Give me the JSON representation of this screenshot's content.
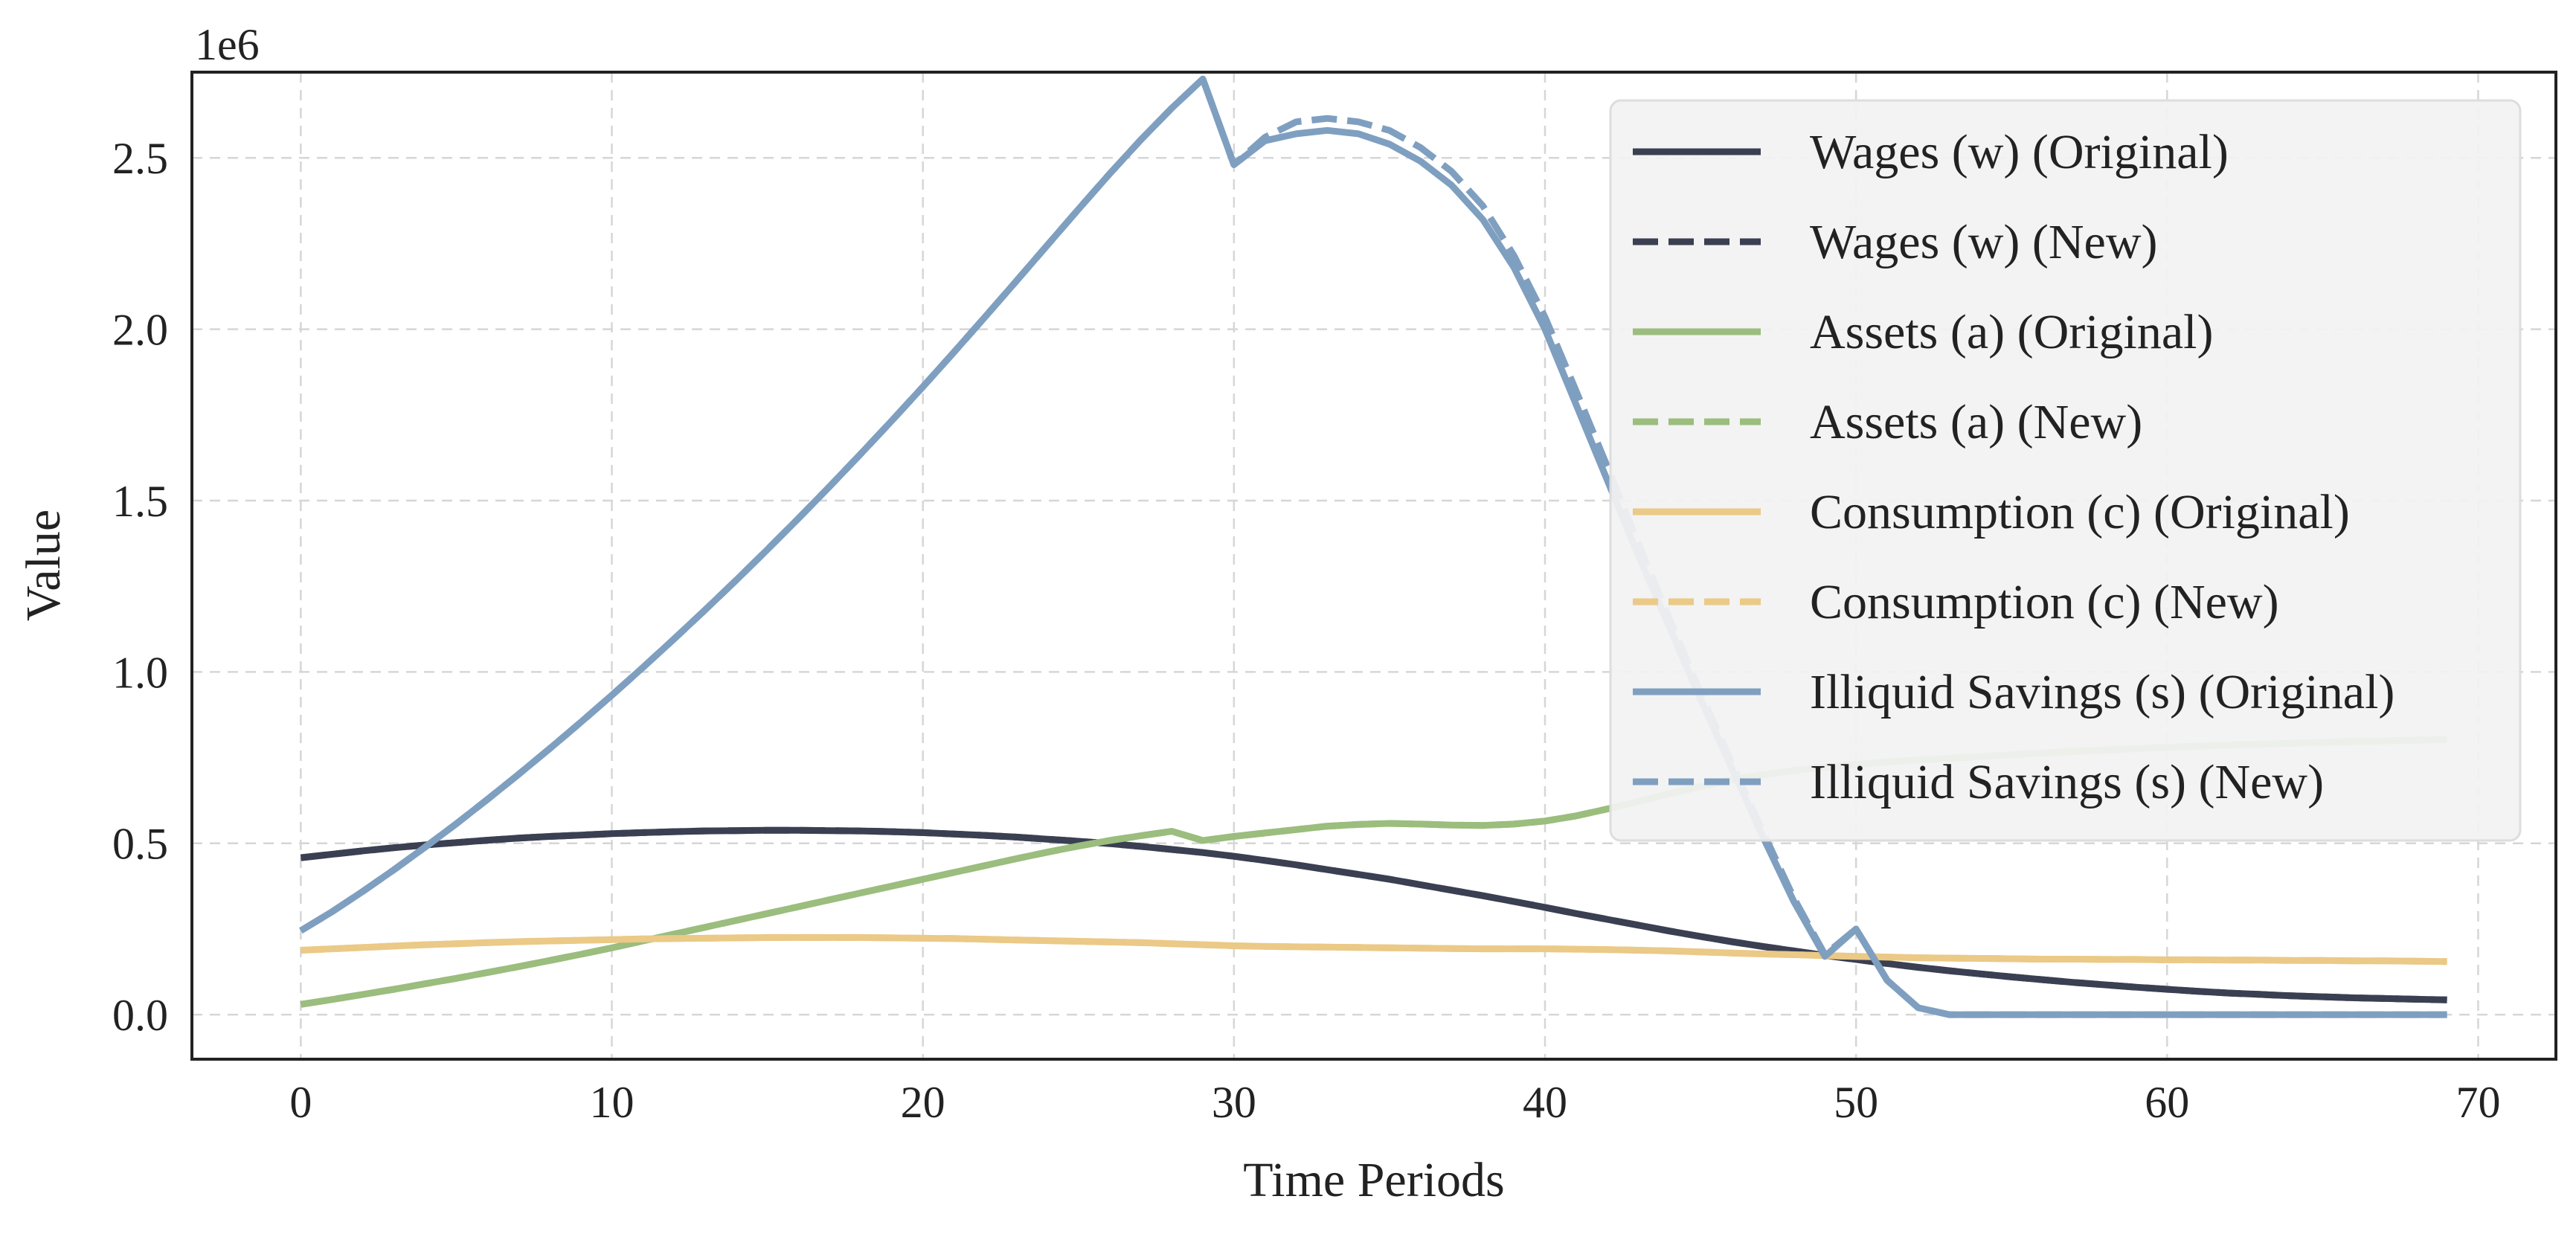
{
  "chart_data": {
    "type": "line",
    "xlabel": "Time Periods",
    "ylabel": "Value",
    "y_offset_label": "1e6",
    "xlim": [
      -3.5,
      72.5
    ],
    "ylim": [
      -130000,
      2750000
    ],
    "x_ticks": [
      0,
      10,
      20,
      30,
      40,
      50,
      60,
      70
    ],
    "y_ticks": [
      0,
      500000,
      1000000,
      1500000,
      2000000,
      2500000
    ],
    "y_tick_labels": [
      "0.0",
      "0.5",
      "1.0",
      "1.5",
      "2.0",
      "2.5"
    ],
    "grid": true,
    "legend_position": "upper right",
    "x": [
      0,
      1,
      2,
      3,
      4,
      5,
      6,
      7,
      8,
      9,
      10,
      11,
      12,
      13,
      14,
      15,
      16,
      17,
      18,
      19,
      20,
      21,
      22,
      23,
      24,
      25,
      26,
      27,
      28,
      29,
      30,
      31,
      32,
      33,
      34,
      35,
      36,
      37,
      38,
      39,
      40,
      41,
      42,
      43,
      44,
      45,
      46,
      47,
      48,
      49,
      50,
      51,
      52,
      53,
      54,
      55,
      56,
      57,
      58,
      59,
      60,
      61,
      62,
      63,
      64,
      65,
      66,
      67,
      68,
      69
    ],
    "series": [
      {
        "name": "Wages (w) (Original)",
        "color": "#3a3f52",
        "dash": "solid",
        "values": [
          458000,
          468000,
          478000,
          487000,
          495000,
          502000,
          509000,
          515000,
          520000,
          524000,
          528000,
          531000,
          534000,
          536000,
          537000,
          538000,
          538000,
          537000,
          536000,
          534000,
          531000,
          527000,
          523000,
          518000,
          512000,
          506000,
          499000,
          491000,
          482000,
          473000,
          462000,
          450000,
          437000,
          423000,
          409000,
          395000,
          379000,
          363000,
          347000,
          330000,
          313000,
          295000,
          278000,
          261000,
          244000,
          228000,
          213000,
          199000,
          186000,
          173000,
          161000,
          149000,
          138000,
          128000,
          119000,
          110000,
          102000,
          94000,
          87000,
          80000,
          74000,
          68000,
          63000,
          59000,
          55000,
          52000,
          49000,
          47000,
          45000,
          43000
        ]
      },
      {
        "name": "Wages (w) (New)",
        "color": "#3a3f52",
        "dash": "dashed",
        "values": [
          458000,
          468000,
          478000,
          487000,
          495000,
          502000,
          509000,
          515000,
          520000,
          524000,
          528000,
          531000,
          534000,
          536000,
          537000,
          538000,
          538000,
          537000,
          536000,
          534000,
          531000,
          527000,
          523000,
          518000,
          512000,
          506000,
          499000,
          491000,
          482000,
          473000,
          462000,
          450000,
          437000,
          423000,
          409000,
          395000,
          379000,
          363000,
          347000,
          330000,
          313000,
          295000,
          278000,
          261000,
          244000,
          228000,
          213000,
          199000,
          186000,
          173000,
          161000,
          149000,
          138000,
          128000,
          119000,
          110000,
          102000,
          94000,
          87000,
          80000,
          74000,
          68000,
          63000,
          59000,
          55000,
          52000,
          49000,
          47000,
          45000,
          43000
        ]
      },
      {
        "name": "Assets (a) (Original)",
        "color": "#9bbd7d",
        "dash": "solid",
        "values": [
          30000,
          44000,
          59000,
          74000,
          90000,
          106000,
          123000,
          140000,
          158000,
          176000,
          195000,
          215000,
          235000,
          255000,
          275000,
          295000,
          315000,
          335000,
          355000,
          375000,
          395000,
          415000,
          435000,
          455000,
          474000,
          492000,
          508000,
          522000,
          535000,
          508000,
          520000,
          530000,
          540000,
          550000,
          555000,
          558000,
          556000,
          553000,
          552000,
          556000,
          565000,
          580000,
          600000,
          622000,
          645000,
          665000,
          685000,
          700000,
          712000,
          722000,
          730000,
          737000,
          743000,
          748000,
          753000,
          758000,
          763000,
          768000,
          772000,
          776000,
          780000,
          783000,
          786000,
          789000,
          792000,
          795000,
          797000,
          799000,
          801000,
          803000
        ]
      },
      {
        "name": "Assets (a) (New)",
        "color": "#9bbd7d",
        "dash": "dashed",
        "values": [
          30000,
          44000,
          59000,
          74000,
          90000,
          106000,
          123000,
          140000,
          158000,
          176000,
          195000,
          215000,
          235000,
          255000,
          275000,
          295000,
          315000,
          335000,
          355000,
          375000,
          395000,
          415000,
          435000,
          455000,
          474000,
          492000,
          508000,
          522000,
          535000,
          508000,
          520000,
          530000,
          540000,
          550000,
          555000,
          558000,
          556000,
          553000,
          552000,
          556000,
          565000,
          580000,
          600000,
          622000,
          645000,
          665000,
          685000,
          700000,
          712000,
          722000,
          730000,
          737000,
          743000,
          748000,
          753000,
          758000,
          763000,
          768000,
          772000,
          776000,
          780000,
          783000,
          786000,
          789000,
          792000,
          795000,
          797000,
          799000,
          801000,
          803000
        ]
      },
      {
        "name": "Consumption (c) (Original)",
        "color": "#ebc986",
        "dash": "solid",
        "values": [
          188000,
          192000,
          196000,
          200000,
          204000,
          207000,
          210000,
          213000,
          215000,
          217000,
          219000,
          221000,
          222000,
          223000,
          224000,
          225000,
          225000,
          225000,
          225000,
          224000,
          223000,
          222000,
          220000,
          218000,
          216000,
          214000,
          212000,
          210000,
          207000,
          204000,
          201000,
          199000,
          198000,
          197000,
          196000,
          195000,
          194000,
          193000,
          192000,
          192000,
          192000,
          191000,
          190000,
          188000,
          186000,
          183000,
          180000,
          177000,
          175000,
          172000,
          170000,
          168000,
          166000,
          165000,
          164000,
          163000,
          162000,
          162000,
          161000,
          161000,
          160000,
          160000,
          159000,
          159000,
          158000,
          158000,
          157000,
          157000,
          156000,
          155000
        ]
      },
      {
        "name": "Consumption (c) (New)",
        "color": "#ebc986",
        "dash": "dashed",
        "values": [
          188000,
          192000,
          196000,
          200000,
          204000,
          207000,
          210000,
          213000,
          215000,
          217000,
          219000,
          221000,
          222000,
          223000,
          224000,
          225000,
          225000,
          225000,
          225000,
          224000,
          223000,
          222000,
          220000,
          218000,
          216000,
          214000,
          212000,
          210000,
          207000,
          204000,
          201000,
          199000,
          198000,
          197000,
          196000,
          195000,
          194000,
          193000,
          192000,
          192000,
          192000,
          191000,
          190000,
          188000,
          186000,
          183000,
          180000,
          177000,
          175000,
          172000,
          170000,
          168000,
          166000,
          165000,
          164000,
          163000,
          162000,
          162000,
          161000,
          161000,
          160000,
          160000,
          159000,
          159000,
          158000,
          158000,
          157000,
          157000,
          156000,
          155000
        ]
      },
      {
        "name": "Illiquid Savings (s) (Original)",
        "color": "#7f9fc0",
        "dash": "solid",
        "values": [
          245000,
          300000,
          360000,
          423000,
          489000,
          557000,
          628000,
          701000,
          776000,
          853000,
          932000,
          1013000,
          1096000,
          1181000,
          1268000,
          1357000,
          1448000,
          1541000,
          1636000,
          1733000,
          1832000,
          1933000,
          2036000,
          2140000,
          2245000,
          2350000,
          2453000,
          2552000,
          2645000,
          2730000,
          2480000,
          2550000,
          2570000,
          2580000,
          2570000,
          2540000,
          2490000,
          2420000,
          2320000,
          2180000,
          2000000,
          1780000,
          1560000,
          1340000,
          1130000,
          920000,
          720000,
          520000,
          330000,
          170000,
          250000,
          100000,
          20000,
          0,
          0,
          0,
          0,
          0,
          0,
          0,
          0,
          0,
          0,
          0,
          0,
          0,
          0,
          0,
          0,
          0
        ]
      },
      {
        "name": "Illiquid Savings (s) (New)",
        "color": "#7f9fc0",
        "dash": "dashed",
        "values": [
          245000,
          300000,
          360000,
          423000,
          489000,
          557000,
          628000,
          701000,
          776000,
          853000,
          932000,
          1013000,
          1096000,
          1181000,
          1268000,
          1357000,
          1448000,
          1541000,
          1636000,
          1733000,
          1832000,
          1933000,
          2036000,
          2140000,
          2245000,
          2350000,
          2453000,
          2552000,
          2645000,
          2730000,
          2480000,
          2560000,
          2605000,
          2615000,
          2605000,
          2580000,
          2530000,
          2460000,
          2360000,
          2215000,
          2035000,
          1820000,
          1600000,
          1375000,
          1155000,
          940000,
          735000,
          535000,
          340000,
          175000,
          250000,
          100000,
          20000,
          0,
          0,
          0,
          0,
          0,
          0,
          0,
          0,
          0,
          0,
          0,
          0,
          0,
          0,
          0,
          0,
          0
        ]
      }
    ]
  }
}
